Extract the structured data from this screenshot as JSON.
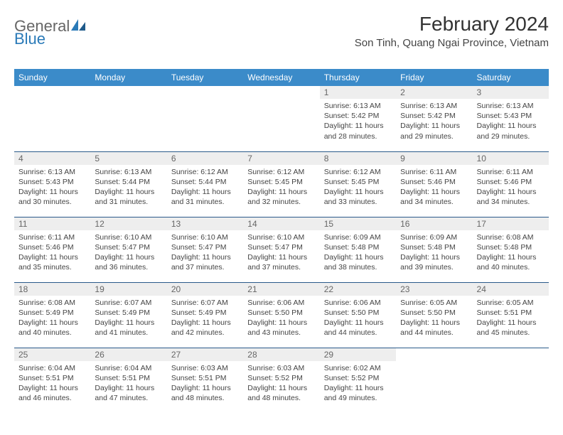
{
  "logo": {
    "text1": "General",
    "text2": "Blue"
  },
  "title": "February 2024",
  "location": "Son Tinh, Quang Ngai Province, Vietnam",
  "colors": {
    "header_bg": "#3b8bc9",
    "header_text": "#ffffff",
    "daynum_bg": "#eeeeee",
    "border": "#2a5a8a",
    "logo_blue": "#2a7ab8"
  },
  "weekdays": [
    "Sunday",
    "Monday",
    "Tuesday",
    "Wednesday",
    "Thursday",
    "Friday",
    "Saturday"
  ],
  "weeks": [
    [
      null,
      null,
      null,
      null,
      {
        "n": "1",
        "sr": "Sunrise: 6:13 AM",
        "ss": "Sunset: 5:42 PM",
        "dl": "Daylight: 11 hours and 28 minutes."
      },
      {
        "n": "2",
        "sr": "Sunrise: 6:13 AM",
        "ss": "Sunset: 5:42 PM",
        "dl": "Daylight: 11 hours and 29 minutes."
      },
      {
        "n": "3",
        "sr": "Sunrise: 6:13 AM",
        "ss": "Sunset: 5:43 PM",
        "dl": "Daylight: 11 hours and 29 minutes."
      }
    ],
    [
      {
        "n": "4",
        "sr": "Sunrise: 6:13 AM",
        "ss": "Sunset: 5:43 PM",
        "dl": "Daylight: 11 hours and 30 minutes."
      },
      {
        "n": "5",
        "sr": "Sunrise: 6:13 AM",
        "ss": "Sunset: 5:44 PM",
        "dl": "Daylight: 11 hours and 31 minutes."
      },
      {
        "n": "6",
        "sr": "Sunrise: 6:12 AM",
        "ss": "Sunset: 5:44 PM",
        "dl": "Daylight: 11 hours and 31 minutes."
      },
      {
        "n": "7",
        "sr": "Sunrise: 6:12 AM",
        "ss": "Sunset: 5:45 PM",
        "dl": "Daylight: 11 hours and 32 minutes."
      },
      {
        "n": "8",
        "sr": "Sunrise: 6:12 AM",
        "ss": "Sunset: 5:45 PM",
        "dl": "Daylight: 11 hours and 33 minutes."
      },
      {
        "n": "9",
        "sr": "Sunrise: 6:11 AM",
        "ss": "Sunset: 5:46 PM",
        "dl": "Daylight: 11 hours and 34 minutes."
      },
      {
        "n": "10",
        "sr": "Sunrise: 6:11 AM",
        "ss": "Sunset: 5:46 PM",
        "dl": "Daylight: 11 hours and 34 minutes."
      }
    ],
    [
      {
        "n": "11",
        "sr": "Sunrise: 6:11 AM",
        "ss": "Sunset: 5:46 PM",
        "dl": "Daylight: 11 hours and 35 minutes."
      },
      {
        "n": "12",
        "sr": "Sunrise: 6:10 AM",
        "ss": "Sunset: 5:47 PM",
        "dl": "Daylight: 11 hours and 36 minutes."
      },
      {
        "n": "13",
        "sr": "Sunrise: 6:10 AM",
        "ss": "Sunset: 5:47 PM",
        "dl": "Daylight: 11 hours and 37 minutes."
      },
      {
        "n": "14",
        "sr": "Sunrise: 6:10 AM",
        "ss": "Sunset: 5:47 PM",
        "dl": "Daylight: 11 hours and 37 minutes."
      },
      {
        "n": "15",
        "sr": "Sunrise: 6:09 AM",
        "ss": "Sunset: 5:48 PM",
        "dl": "Daylight: 11 hours and 38 minutes."
      },
      {
        "n": "16",
        "sr": "Sunrise: 6:09 AM",
        "ss": "Sunset: 5:48 PM",
        "dl": "Daylight: 11 hours and 39 minutes."
      },
      {
        "n": "17",
        "sr": "Sunrise: 6:08 AM",
        "ss": "Sunset: 5:48 PM",
        "dl": "Daylight: 11 hours and 40 minutes."
      }
    ],
    [
      {
        "n": "18",
        "sr": "Sunrise: 6:08 AM",
        "ss": "Sunset: 5:49 PM",
        "dl": "Daylight: 11 hours and 40 minutes."
      },
      {
        "n": "19",
        "sr": "Sunrise: 6:07 AM",
        "ss": "Sunset: 5:49 PM",
        "dl": "Daylight: 11 hours and 41 minutes."
      },
      {
        "n": "20",
        "sr": "Sunrise: 6:07 AM",
        "ss": "Sunset: 5:49 PM",
        "dl": "Daylight: 11 hours and 42 minutes."
      },
      {
        "n": "21",
        "sr": "Sunrise: 6:06 AM",
        "ss": "Sunset: 5:50 PM",
        "dl": "Daylight: 11 hours and 43 minutes."
      },
      {
        "n": "22",
        "sr": "Sunrise: 6:06 AM",
        "ss": "Sunset: 5:50 PM",
        "dl": "Daylight: 11 hours and 44 minutes."
      },
      {
        "n": "23",
        "sr": "Sunrise: 6:05 AM",
        "ss": "Sunset: 5:50 PM",
        "dl": "Daylight: 11 hours and 44 minutes."
      },
      {
        "n": "24",
        "sr": "Sunrise: 6:05 AM",
        "ss": "Sunset: 5:51 PM",
        "dl": "Daylight: 11 hours and 45 minutes."
      }
    ],
    [
      {
        "n": "25",
        "sr": "Sunrise: 6:04 AM",
        "ss": "Sunset: 5:51 PM",
        "dl": "Daylight: 11 hours and 46 minutes."
      },
      {
        "n": "26",
        "sr": "Sunrise: 6:04 AM",
        "ss": "Sunset: 5:51 PM",
        "dl": "Daylight: 11 hours and 47 minutes."
      },
      {
        "n": "27",
        "sr": "Sunrise: 6:03 AM",
        "ss": "Sunset: 5:51 PM",
        "dl": "Daylight: 11 hours and 48 minutes."
      },
      {
        "n": "28",
        "sr": "Sunrise: 6:03 AM",
        "ss": "Sunset: 5:52 PM",
        "dl": "Daylight: 11 hours and 48 minutes."
      },
      {
        "n": "29",
        "sr": "Sunrise: 6:02 AM",
        "ss": "Sunset: 5:52 PM",
        "dl": "Daylight: 11 hours and 49 minutes."
      },
      null,
      null
    ]
  ]
}
